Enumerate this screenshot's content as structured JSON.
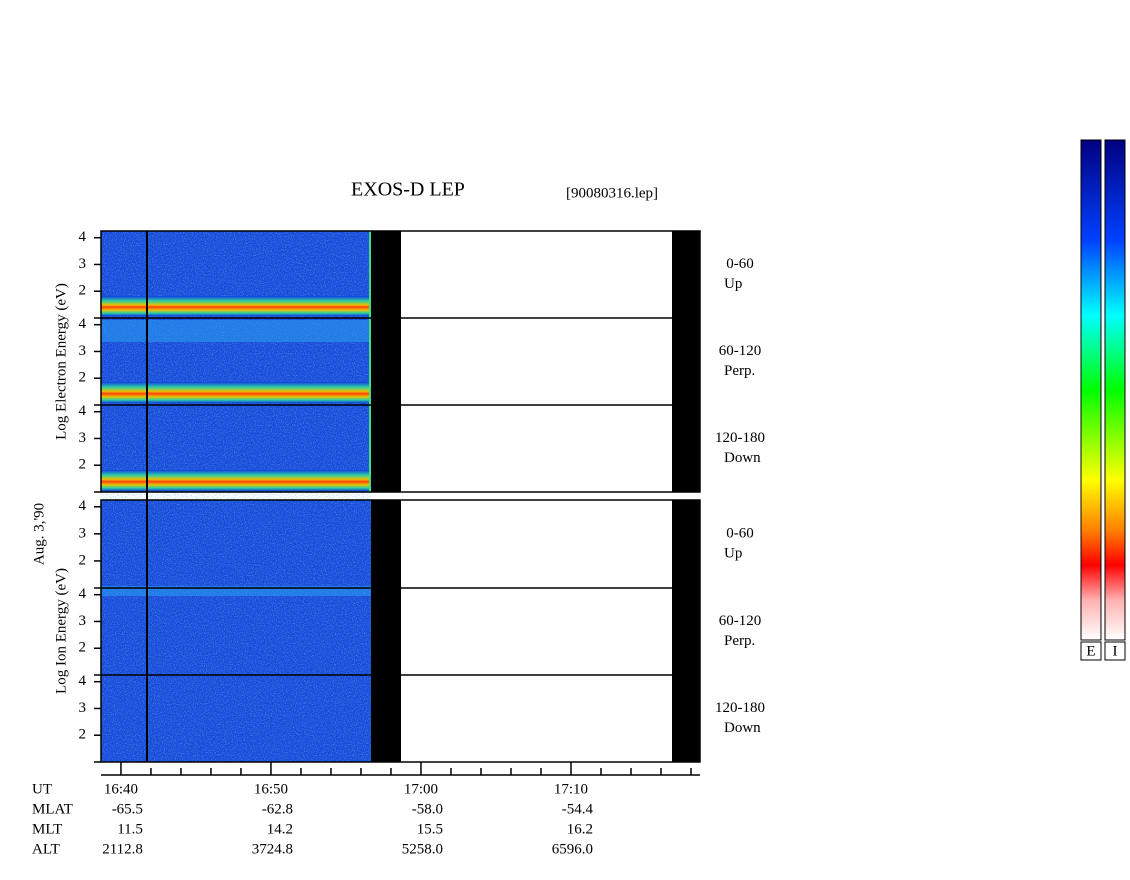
{
  "header": {
    "title": "EXOS-D LEP",
    "file": "[90080316.lep]"
  },
  "date": "Aug. 3,'90",
  "panels": [
    {
      "axis_label": "Log Electron Energy (eV)",
      "subpanels": [
        {
          "range": "0-60",
          "direction": "Up"
        },
        {
          "range": "60-120",
          "direction": "Perp."
        },
        {
          "range": "120-180",
          "direction": "Down"
        }
      ]
    },
    {
      "axis_label": "Log Ion Energy (eV)",
      "subpanels": [
        {
          "range": "0-60",
          "direction": "Up"
        },
        {
          "range": "60-120",
          "direction": "Perp."
        },
        {
          "range": "120-180",
          "direction": "Down"
        }
      ]
    }
  ],
  "energy_axis": {
    "ylim": [
      1,
      4.25
    ],
    "yticks": [
      2,
      3,
      4
    ],
    "minor_yticks": [
      1
    ]
  },
  "time_axis": {
    "xlim": [
      998.67,
      1038.6
    ],
    "xticks": [
      {
        "value": 1000,
        "label": "16:40"
      },
      {
        "value": 1010,
        "label": "16:50"
      },
      {
        "value": 1020,
        "label": "17:00"
      },
      {
        "value": 1030,
        "label": "17:10"
      }
    ],
    "minor_xticks": [
      1002,
      1004,
      1006,
      1008,
      1012,
      1014,
      1016,
      1018,
      1022,
      1024,
      1026,
      1028,
      1032,
      1034,
      1036,
      1038
    ]
  },
  "ephemeris": {
    "ut_label": "UT",
    "rows": [
      {
        "name": "MLAT",
        "values": [
          "-65.5",
          "-62.8",
          "-58.0",
          "-54.4"
        ]
      },
      {
        "name": "MLT",
        "values": [
          "11.5",
          "14.2",
          "15.5",
          "16.2"
        ]
      },
      {
        "name": "ALT",
        "values": [
          "2112.8",
          "3724.8",
          "5258.0",
          "6596.0"
        ]
      }
    ]
  },
  "colorbar": {
    "labels": [
      "E",
      "I"
    ]
  }
}
